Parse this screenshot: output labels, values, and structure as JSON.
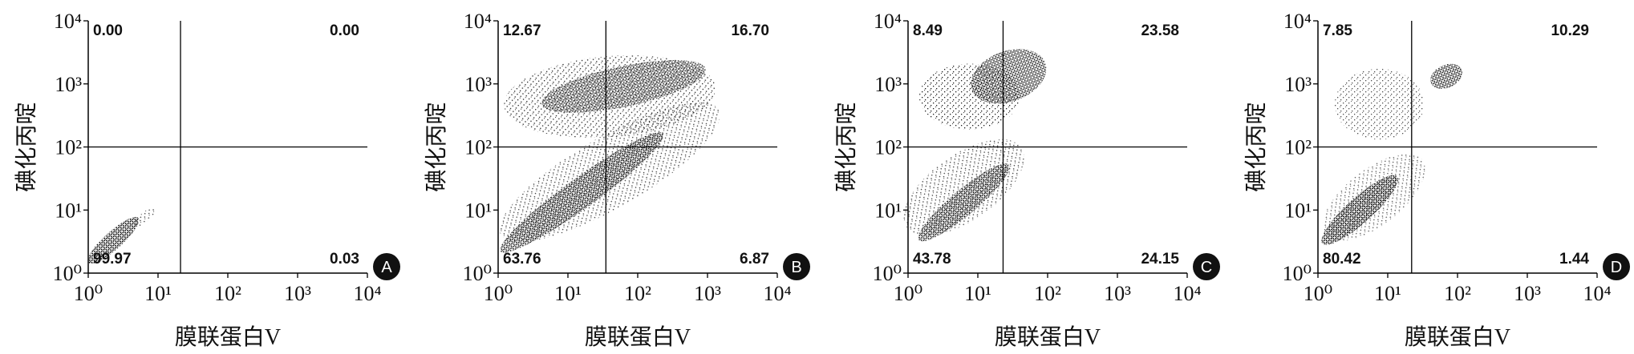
{
  "chart_data": [
    {
      "type": "quadrant-scatter",
      "panel_label": "A",
      "xlabel": "膜联蛋白V",
      "ylabel": "碘化丙啶",
      "log_x": true,
      "log_y": true,
      "xlim": [
        1,
        10000
      ],
      "ylim": [
        1,
        10000
      ],
      "xticks": [
        {
          "value": 1,
          "label": "10⁰"
        },
        {
          "value": 10,
          "label": "10¹"
        },
        {
          "value": 100,
          "label": "10²"
        },
        {
          "value": 1000,
          "label": "10³"
        },
        {
          "value": 10000,
          "label": "10⁴"
        }
      ],
      "yticks": [
        {
          "value": 1,
          "label": "10⁰"
        },
        {
          "value": 10,
          "label": "10¹"
        },
        {
          "value": 100,
          "label": "10²"
        },
        {
          "value": 1000,
          "label": "10³"
        },
        {
          "value": 10000,
          "label": "10⁴"
        }
      ],
      "x_gate": 21,
      "y_gate": 100,
      "values": [
        0,
        0,
        99.97,
        0.03
      ],
      "value_labels": [
        "0.00",
        "0.00",
        "99.97",
        "0.03"
      ]
    },
    {
      "type": "quadrant-scatter",
      "panel_label": "B",
      "xlabel": "膜联蛋白V",
      "ylabel": "碘化丙啶",
      "log_x": true,
      "log_y": true,
      "xlim": [
        1,
        10000
      ],
      "ylim": [
        1,
        10000
      ],
      "xticks": [
        {
          "value": 1,
          "label": "10⁰"
        },
        {
          "value": 10,
          "label": "10¹"
        },
        {
          "value": 100,
          "label": "10²"
        },
        {
          "value": 1000,
          "label": "10³"
        },
        {
          "value": 10000,
          "label": "10⁴"
        }
      ],
      "yticks": [
        {
          "value": 1,
          "label": "10⁰"
        },
        {
          "value": 10,
          "label": "10¹"
        },
        {
          "value": 100,
          "label": "10²"
        },
        {
          "value": 1000,
          "label": "10³"
        },
        {
          "value": 10000,
          "label": "10⁴"
        }
      ],
      "x_gate": 35,
      "y_gate": 100,
      "values": [
        12.67,
        16.7,
        63.76,
        6.87
      ],
      "value_labels": [
        "12.67",
        "16.70",
        "63.76",
        "6.87"
      ]
    },
    {
      "type": "quadrant-scatter",
      "panel_label": "C",
      "xlabel": "膜联蛋白V",
      "ylabel": "碘化丙啶",
      "log_x": true,
      "log_y": true,
      "xlim": [
        1,
        10000
      ],
      "ylim": [
        1,
        10000
      ],
      "xticks": [
        {
          "value": 1,
          "label": "10⁰"
        },
        {
          "value": 10,
          "label": "10¹"
        },
        {
          "value": 100,
          "label": "10²"
        },
        {
          "value": 1000,
          "label": "10³"
        },
        {
          "value": 10000,
          "label": "10⁴"
        }
      ],
      "yticks": [
        {
          "value": 1,
          "label": "10⁰"
        },
        {
          "value": 10,
          "label": "10¹"
        },
        {
          "value": 100,
          "label": "10²"
        },
        {
          "value": 1000,
          "label": "10³"
        },
        {
          "value": 10000,
          "label": "10⁴"
        }
      ],
      "x_gate": 23,
      "y_gate": 100,
      "values": [
        8.49,
        23.58,
        43.78,
        24.15
      ],
      "value_labels": [
        "8.49",
        "23.58",
        "43.78",
        "24.15"
      ]
    },
    {
      "type": "quadrant-scatter",
      "panel_label": "D",
      "xlabel": "膜联蛋白V",
      "ylabel": "碘化丙啶",
      "log_x": true,
      "log_y": true,
      "xlim": [
        1,
        10000
      ],
      "ylim": [
        1,
        10000
      ],
      "xticks": [
        {
          "value": 1,
          "label": "10⁰"
        },
        {
          "value": 10,
          "label": "10¹"
        },
        {
          "value": 100,
          "label": "10²"
        },
        {
          "value": 1000,
          "label": "10³"
        },
        {
          "value": 10000,
          "label": "10⁴"
        }
      ],
      "yticks": [
        {
          "value": 1,
          "label": "10⁰"
        },
        {
          "value": 10,
          "label": "10¹"
        },
        {
          "value": 100,
          "label": "10²"
        },
        {
          "value": 1000,
          "label": "10³"
        },
        {
          "value": 10000,
          "label": "10⁴"
        }
      ],
      "x_gate": 22,
      "y_gate": 100,
      "values": [
        7.85,
        10.29,
        80.42,
        1.44
      ],
      "value_labels": [
        "7.85",
        "10.29",
        "80.42",
        "1.44"
      ]
    }
  ]
}
